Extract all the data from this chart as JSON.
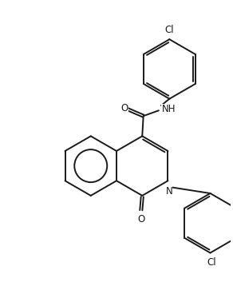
{
  "bg_color": "#ffffff",
  "line_color": "#1a1a1a",
  "line_width": 1.4,
  "font_size": 8.5,
  "figsize": [
    2.92,
    3.78
  ],
  "dpi": 100,
  "xlim": [
    0,
    10
  ],
  "ylim": [
    0,
    13
  ]
}
